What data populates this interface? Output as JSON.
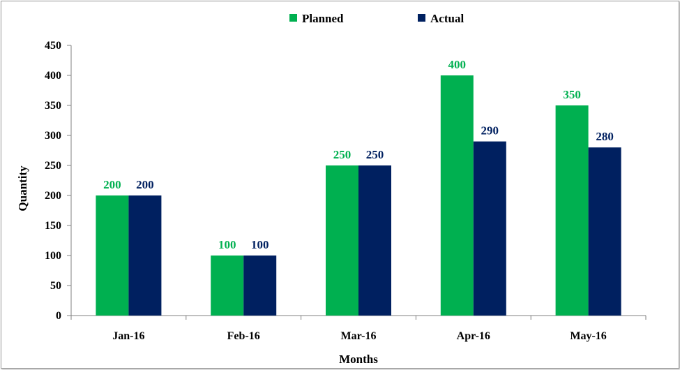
{
  "chart_data": {
    "type": "bar",
    "categories": [
      "Jan-16",
      "Feb-16",
      "Mar-16",
      "Apr-16",
      "May-16"
    ],
    "series": [
      {
        "name": "Planned",
        "values": [
          200,
          100,
          250,
          400,
          350
        ],
        "color": "#00b050",
        "label_color": "#00b050"
      },
      {
        "name": "Actual",
        "values": [
          200,
          100,
          250,
          290,
          280
        ],
        "color": "#002060",
        "label_color": "#002060"
      }
    ],
    "xlabel": "Months",
    "ylabel": "Quantity",
    "ylim": [
      0,
      450
    ],
    "yticks": [
      0,
      50,
      100,
      150,
      200,
      250,
      300,
      350,
      400,
      450
    ],
    "ytick_labels": [
      "0",
      "50",
      "100",
      "150",
      "200",
      "250",
      "300",
      "350",
      "400",
      "450"
    ],
    "grid": false,
    "legend": "top-center",
    "data_labels": true
  }
}
